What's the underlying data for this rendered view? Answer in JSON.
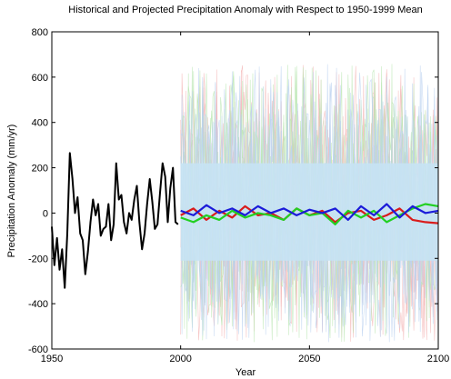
{
  "chart_data": {
    "type": "line",
    "title": "Historical and Projected Precipitation Anomaly with Respect to 1950-1999 Mean",
    "xlabel": "Year",
    "ylabel": "Precipitation Anomaly (mm/yr)",
    "xlim": [
      1950,
      2100
    ],
    "ylim": [
      -600,
      800
    ],
    "xticks": [
      1950,
      2000,
      2050,
      2100
    ],
    "yticks": [
      -600,
      -400,
      -200,
      0,
      200,
      400,
      600,
      800
    ],
    "grid": false,
    "legend": "none",
    "envelope": {
      "x_range": [
        2000,
        2100
      ],
      "lower": -210,
      "upper": 220,
      "color": "#c7e3f3"
    },
    "noise_bands": {
      "x_range": [
        2000,
        2100
      ],
      "colors": [
        "#f4b6b6",
        "#b9e6b2",
        "#bcd2f0"
      ],
      "typical_range": [
        -420,
        460
      ],
      "extreme_range": [
        -570,
        660
      ]
    },
    "series": [
      {
        "color": "#000000",
        "x": [
          1950,
          1951,
          1952,
          1953,
          1954,
          1955,
          1956,
          1957,
          1958,
          1959,
          1960,
          1961,
          1962,
          1963,
          1964,
          1965,
          1966,
          1967,
          1968,
          1969,
          1970,
          1971,
          1972,
          1973,
          1974,
          1975,
          1976,
          1977,
          1978,
          1979,
          1980,
          1981,
          1982,
          1983,
          1984,
          1985,
          1986,
          1987,
          1988,
          1989,
          1990,
          1991,
          1992,
          1993,
          1994,
          1995,
          1996,
          1997,
          1998,
          1999
        ],
        "y": [
          -60,
          -230,
          -110,
          -250,
          -160,
          -330,
          -90,
          265,
          150,
          0,
          70,
          -90,
          -120,
          -270,
          -170,
          -40,
          60,
          -10,
          40,
          -100,
          -70,
          -60,
          40,
          -120,
          -50,
          220,
          60,
          80,
          -40,
          -90,
          0,
          -30,
          60,
          120,
          -40,
          -160,
          -90,
          40,
          150,
          50,
          -70,
          -50,
          90,
          220,
          160,
          -40,
          110,
          200,
          -40,
          -50
        ]
      },
      {
        "color": "#d91b1b",
        "x": [
          2000,
          2005,
          2010,
          2015,
          2020,
          2025,
          2030,
          2035,
          2040,
          2045,
          2050,
          2055,
          2060,
          2065,
          2070,
          2075,
          2080,
          2085,
          2090,
          2095,
          2100
        ],
        "y": [
          -10,
          20,
          -30,
          10,
          -20,
          30,
          -10,
          0,
          -30,
          20,
          -10,
          10,
          -40,
          0,
          10,
          -30,
          -10,
          20,
          -30,
          -40,
          -45
        ]
      },
      {
        "color": "#22d022",
        "x": [
          2000,
          2005,
          2010,
          2015,
          2020,
          2025,
          2030,
          2035,
          2040,
          2045,
          2050,
          2055,
          2060,
          2065,
          2070,
          2075,
          2080,
          2085,
          2090,
          2095,
          2100
        ],
        "y": [
          -20,
          -40,
          -10,
          -30,
          10,
          -20,
          0,
          -10,
          -30,
          20,
          -10,
          0,
          -50,
          10,
          -20,
          10,
          -40,
          -10,
          20,
          40,
          30
        ]
      },
      {
        "color": "#1b1bd9",
        "x": [
          2000,
          2005,
          2010,
          2015,
          2020,
          2025,
          2030,
          2035,
          2040,
          2045,
          2050,
          2055,
          2060,
          2065,
          2070,
          2075,
          2080,
          2085,
          2090,
          2095,
          2100
        ],
        "y": [
          10,
          -10,
          35,
          0,
          20,
          -10,
          30,
          0,
          20,
          -10,
          15,
          0,
          20,
          -30,
          30,
          -10,
          40,
          -20,
          30,
          0,
          10
        ]
      }
    ]
  }
}
